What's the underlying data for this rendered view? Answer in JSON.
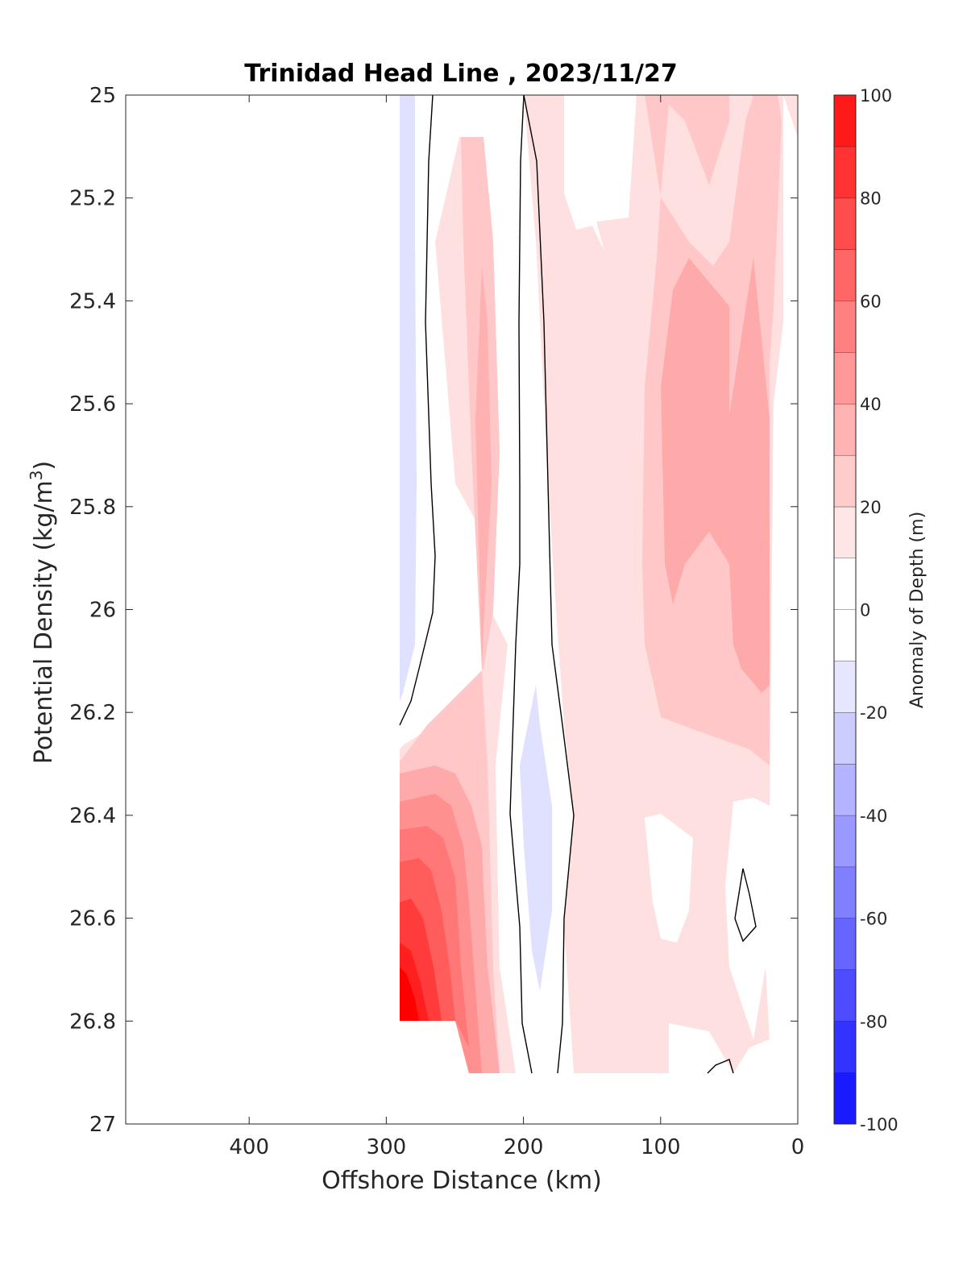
{
  "chart_data": {
    "type": "heatmap",
    "title": "Trinidad Head Line , 2023/11/27",
    "xlabel": "Offshore Distance (km)",
    "ylabel": "Potential Density (kg/m",
    "ylabel_sup": "3",
    "ylabel_close": ")",
    "colorbar_label": "Anomaly of Depth (m)",
    "xlim": [
      490,
      0
    ],
    "ylim": [
      25,
      27
    ],
    "x_reversed": true,
    "y_reversed": true,
    "x_ticks": [
      "400",
      "300",
      "200",
      "100",
      "0"
    ],
    "x_tick_values": [
      400,
      300,
      200,
      100,
      0
    ],
    "y_ticks": [
      "25",
      "25.2",
      "25.4",
      "25.6",
      "25.8",
      "26",
      "26.2",
      "26.4",
      "26.6",
      "26.8",
      "27"
    ],
    "y_tick_values": [
      25,
      25.2,
      25.4,
      25.6,
      25.8,
      26,
      26.2,
      26.4,
      26.6,
      26.8,
      27
    ],
    "colorbar_ticks": [
      "100",
      "80",
      "60",
      "40",
      "20",
      "0",
      "-20",
      "-40",
      "-60",
      "-80",
      "-100"
    ],
    "colorbar_range": [
      -100,
      100
    ],
    "contour_levels": [
      -100,
      -90,
      -80,
      -70,
      -60,
      -50,
      -40,
      -30,
      -20,
      -10,
      0,
      10,
      20,
      30,
      40,
      50,
      60,
      70,
      80,
      90,
      100
    ],
    "colormap": {
      "negative_end": "#0000ff",
      "zero": "#ffffff",
      "positive_end": "#ff0000"
    },
    "data_extent": {
      "x": [
        290,
        10
      ],
      "y": [
        25,
        26.9
      ]
    },
    "zero_contour_color": "#000000",
    "grid": false,
    "features": [
      {
        "x": 287,
        "y": 25.6,
        "anomaly": -10
      },
      {
        "x": 230,
        "y": 25.8,
        "anomaly": 25
      },
      {
        "x": 280,
        "y": 26.75,
        "anomaly": 95
      },
      {
        "x": 185,
        "y": 26.45,
        "anomaly": -15
      },
      {
        "x": 80,
        "y": 25.7,
        "anomaly": 35
      },
      {
        "x": 30,
        "y": 25.5,
        "anomaly": 35
      },
      {
        "x": 95,
        "y": 26.55,
        "anomaly": 5
      }
    ]
  }
}
